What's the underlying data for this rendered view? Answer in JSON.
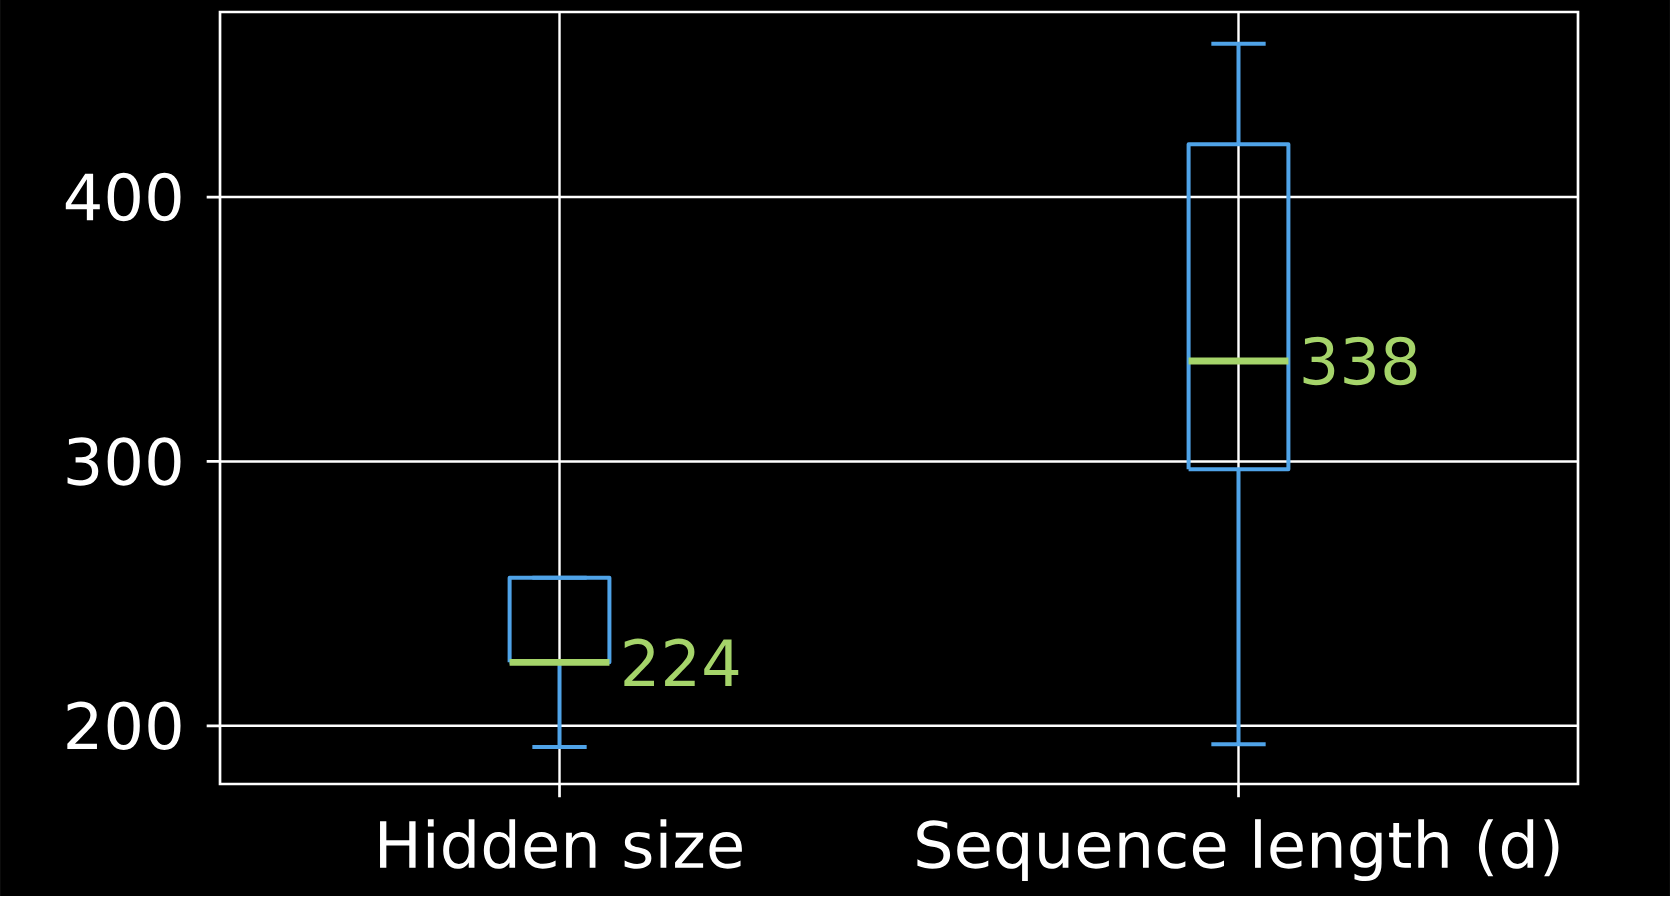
{
  "chart_data": {
    "type": "box",
    "categories": [
      "Hidden size",
      "Sequence length (d)"
    ],
    "series": [
      {
        "color": "#4fa3e8",
        "boxes": [
          {
            "low": 192,
            "q1": 224,
            "median": 224,
            "q3": 256,
            "high": 256
          },
          {
            "low": 193,
            "q1": 297,
            "median": 338,
            "q3": 420,
            "high": 458
          }
        ]
      }
    ],
    "ylim": [
      178,
      470
    ],
    "yticks": [
      200,
      300,
      400
    ],
    "grid": true,
    "annotations": [
      {
        "text": "224",
        "x": "Hidden size",
        "y": 224
      },
      {
        "text": "338",
        "x": "Sequence length (d)",
        "y": 338
      }
    ]
  }
}
